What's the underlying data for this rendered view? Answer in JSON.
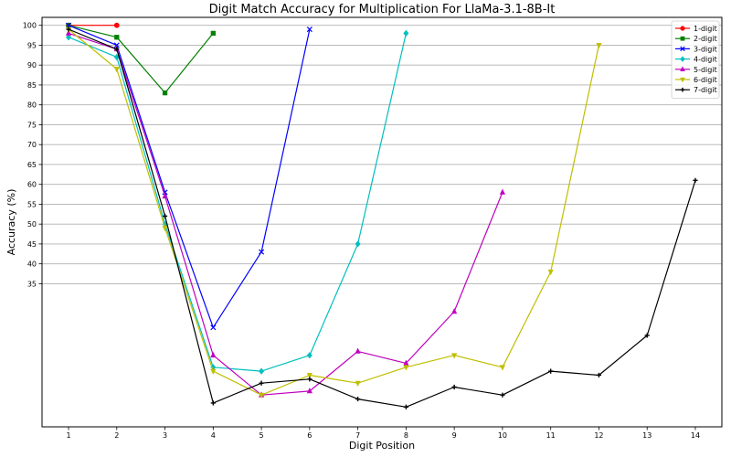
{
  "chart_data": {
    "type": "line",
    "title": "Digit Match Accuracy for Multiplication For LlaMa-3.1-8B-It",
    "xlabel": "Digit Position",
    "ylabel": "Accuracy (%)",
    "x_ticks": [
      1,
      2,
      3,
      4,
      5,
      6,
      7,
      8,
      9,
      10,
      11,
      12,
      13,
      14
    ],
    "y_ticks": [
      35,
      40,
      45,
      50,
      55,
      60,
      65,
      70,
      75,
      80,
      85,
      90,
      95,
      100
    ],
    "ylim": [
      -1,
      102
    ],
    "xlim": [
      0.45,
      14.55
    ],
    "grid": "horizontal",
    "legend_position": "top-right",
    "series": [
      {
        "name": "1-digit",
        "color": "#ff0000",
        "marker": "circle",
        "x": [
          1,
          2
        ],
        "y": [
          100,
          100
        ]
      },
      {
        "name": "2-digit",
        "color": "#008000",
        "marker": "square",
        "x": [
          1,
          2,
          3,
          4
        ],
        "y": [
          100,
          97,
          83,
          98
        ]
      },
      {
        "name": "3-digit",
        "color": "#0000ff",
        "marker": "x",
        "x": [
          1,
          2,
          3,
          4,
          5,
          6
        ],
        "y": [
          100,
          95,
          58,
          24,
          43,
          99
        ]
      },
      {
        "name": "4-digit",
        "color": "#00bfbf",
        "marker": "diamond",
        "x": [
          1,
          2,
          3,
          4,
          5,
          6,
          7,
          8
        ],
        "y": [
          97,
          92,
          50,
          14,
          13,
          17,
          45,
          98
        ]
      },
      {
        "name": "5-digit",
        "color": "#bf00bf",
        "marker": "triangle-up",
        "x": [
          1,
          2,
          3,
          4,
          5,
          6,
          7,
          8,
          9,
          10
        ],
        "y": [
          98,
          94,
          57,
          17,
          7,
          8,
          18,
          15,
          28,
          58
        ]
      },
      {
        "name": "6-digit",
        "color": "#bfbf00",
        "marker": "triangle-down",
        "x": [
          1,
          2,
          3,
          4,
          5,
          6,
          7,
          8,
          9,
          10,
          11,
          12
        ],
        "y": [
          99,
          89,
          49,
          13,
          7,
          12,
          10,
          14,
          17,
          14,
          38,
          95
        ]
      },
      {
        "name": "7-digit",
        "color": "#000000",
        "marker": "plus",
        "x": [
          1,
          2,
          3,
          4,
          5,
          6,
          7,
          8,
          9,
          10,
          11,
          12,
          13,
          14
        ],
        "y": [
          99,
          94,
          52,
          5,
          10,
          11,
          6,
          4,
          9,
          7,
          13,
          12,
          22,
          61
        ]
      }
    ]
  }
}
